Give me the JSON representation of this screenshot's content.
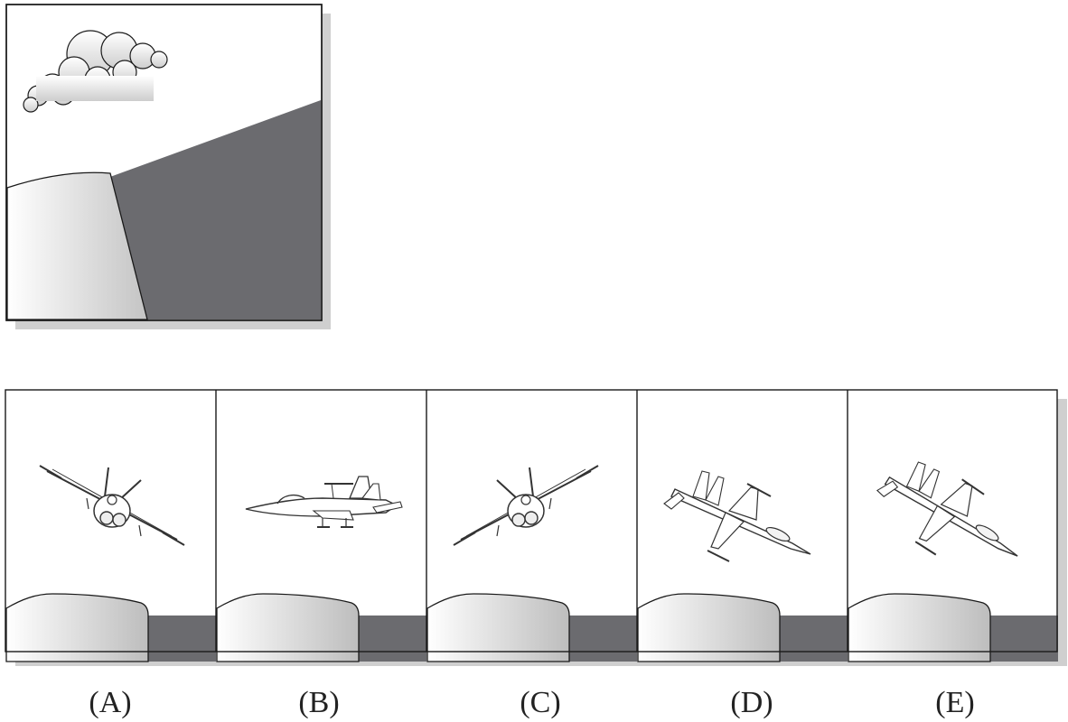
{
  "question": {
    "elements": [
      "cloud-icon",
      "pillar-icon",
      "dark-slope"
    ],
    "colors": {
      "dark": "#6b6b6f",
      "frame": "#1a1a1a",
      "shadow": "#cfcfcf"
    }
  },
  "options": [
    {
      "label": "(A)",
      "aircraft_view": "front-view-banked"
    },
    {
      "label": "(B)",
      "aircraft_view": "side-view"
    },
    {
      "label": "(C)",
      "aircraft_view": "front-view-banked-opposite"
    },
    {
      "label": "(D)",
      "aircraft_view": "top-view-diving"
    },
    {
      "label": "(E)",
      "aircraft_view": "top-view-diving-alt"
    }
  ]
}
